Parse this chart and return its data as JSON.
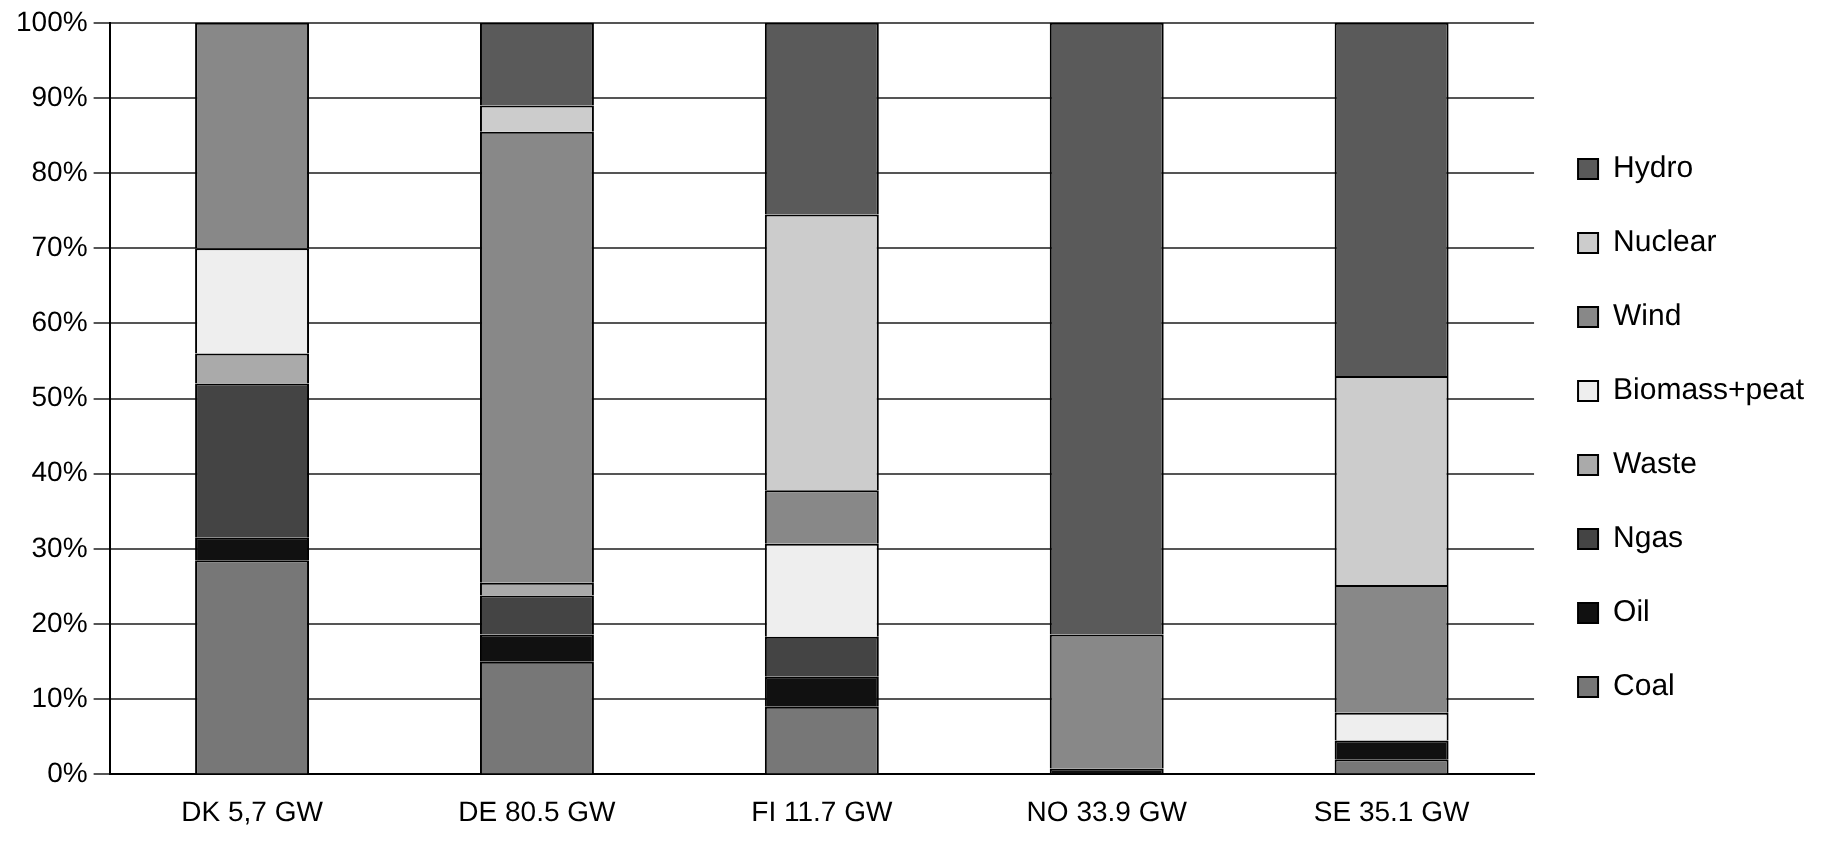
{
  "chart_data": {
    "type": "bar",
    "stacked": true,
    "categories": [
      "DK 5,7 GW",
      "DE 80.5 GW",
      "FI 11.7 GW",
      "NO 33.9 GW",
      "SE 35.1 GW"
    ],
    "series": [
      {
        "name": "Coal",
        "color": "#777777",
        "values": [
          28.5,
          15,
          9,
          0,
          2
        ]
      },
      {
        "name": "Oil",
        "color": "#111111",
        "values": [
          3,
          3.6,
          4,
          0.8,
          2.5
        ]
      },
      {
        "name": "Ngas",
        "color": "#444444",
        "values": [
          20.5,
          5.2,
          5.3,
          0,
          0
        ]
      },
      {
        "name": "Waste",
        "color": "#aaaaaa",
        "values": [
          4,
          1.7,
          0,
          0,
          0
        ]
      },
      {
        "name": "Biomass+peat",
        "color": "#eeeeee",
        "values": [
          14,
          0,
          12.4,
          0,
          3.7
        ]
      },
      {
        "name": "Wind",
        "color": "#888888",
        "values": [
          30,
          60,
          7.1,
          17.8,
          17
        ]
      },
      {
        "name": "Nuclear",
        "color": "#cccccc",
        "values": [
          0,
          3.5,
          36.7,
          0,
          27.8
        ]
      },
      {
        "name": "Hydro",
        "color": "#5a5a5a",
        "values": [
          0,
          11,
          25.5,
          81.4,
          47
        ]
      }
    ],
    "ylim": [
      0,
      100
    ],
    "yticks": [
      {
        "value": 0,
        "label": "0%"
      },
      {
        "value": 10,
        "label": "10%"
      },
      {
        "value": 20,
        "label": "20%"
      },
      {
        "value": 30,
        "label": "30%"
      },
      {
        "value": 40,
        "label": "40%"
      },
      {
        "value": 50,
        "label": "50%"
      },
      {
        "value": 60,
        "label": "60%"
      },
      {
        "value": 70,
        "label": "70%"
      },
      {
        "value": 80,
        "label": "80%"
      },
      {
        "value": 90,
        "label": "90%"
      },
      {
        "value": 100,
        "label": "100%"
      }
    ],
    "grid": "y",
    "legend": "right"
  }
}
